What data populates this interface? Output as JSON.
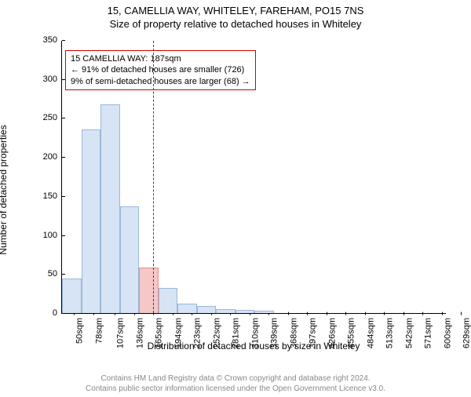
{
  "title": "15, CAMELLIA WAY, WHITELEY, FAREHAM, PO15 7NS",
  "subtitle": "Size of property relative to detached houses in Whiteley",
  "chart": {
    "type": "histogram",
    "xlabel": "Distribution of detached houses by size in Whiteley",
    "ylabel": "Number of detached properties",
    "ylim": [
      0,
      350
    ],
    "ytick_step": 50,
    "yticks": [
      0,
      50,
      100,
      150,
      200,
      250,
      300,
      350
    ],
    "xticks": [
      "50sqm",
      "78sqm",
      "107sqm",
      "136sqm",
      "165sqm",
      "194sqm",
      "223sqm",
      "252sqm",
      "281sqm",
      "310sqm",
      "339sqm",
      "368sqm",
      "397sqm",
      "426sqm",
      "455sqm",
      "484sqm",
      "513sqm",
      "542sqm",
      "571sqm",
      "600sqm",
      "629sqm"
    ],
    "values": [
      44,
      235,
      268,
      137,
      58,
      32,
      12,
      9,
      5,
      4,
      3,
      0,
      0,
      0,
      0,
      0,
      0,
      0,
      0,
      0
    ],
    "bar_fill": "#d6e4f5",
    "bar_stroke": "#9db8d8",
    "highlight_index": 4,
    "highlight_fill": "#f5c7c7",
    "highlight_stroke": "#e28e8e",
    "reference_line": {
      "value_sqm": 187,
      "color": "#d00000"
    },
    "plot_bg": "#ffffff",
    "axis_color": "#000000",
    "tick_fontsize": 11,
    "label_fontsize": 12,
    "title_fontsize": 13
  },
  "annotation": {
    "border_color": "#d00000",
    "lines": [
      "15 CAMELLIA WAY: 187sqm",
      "← 91% of detached houses are smaller (726)",
      "9% of semi-detached houses are larger (68) →"
    ]
  },
  "footer": {
    "color": "#888888",
    "lines": [
      "Contains HM Land Registry data © Crown copyright and database right 2024.",
      "Contains public sector information licensed under the Open Government Licence v3.0."
    ]
  }
}
